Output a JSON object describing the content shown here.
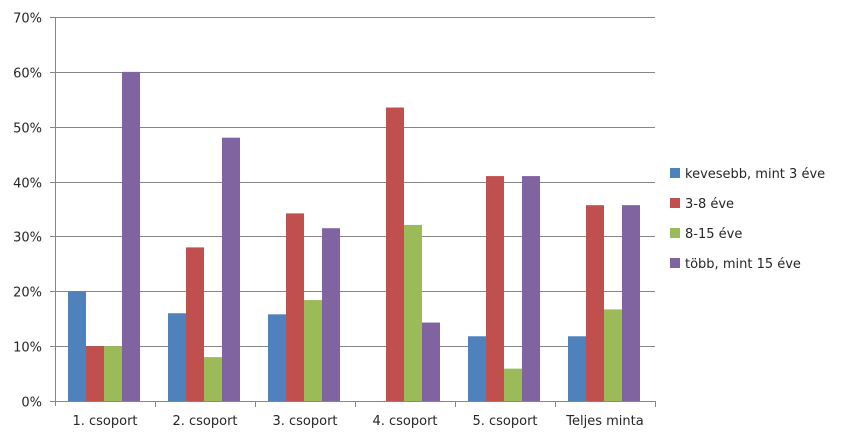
{
  "chart_data": {
    "type": "bar",
    "title": "",
    "xlabel": "",
    "ylabel": "",
    "ylim": [
      0,
      0.7
    ],
    "yticks": [
      0,
      0.1,
      0.2,
      0.3,
      0.4,
      0.5,
      0.6,
      0.7
    ],
    "ytick_labels": [
      "0%",
      "10%",
      "20%",
      "30%",
      "40%",
      "50%",
      "60%",
      "70%"
    ],
    "grid": true,
    "legend_position": "right",
    "categories": [
      "1. csoport",
      "2. csoport",
      "3. csoport",
      "4. csoport",
      "5. csoport",
      "Teljes minta"
    ],
    "series": [
      {
        "name": "kevesebb, mint 3 éve",
        "color": "#4F81BD",
        "values": [
          0.2,
          0.16,
          0.158,
          0.0,
          0.118,
          0.118
        ]
      },
      {
        "name": "3-8 éve",
        "color": "#C0504D",
        "values": [
          0.1,
          0.28,
          0.342,
          0.535,
          0.41,
          0.357
        ]
      },
      {
        "name": "8-15 éve",
        "color": "#9BBB59",
        "values": [
          0.1,
          0.08,
          0.184,
          0.321,
          0.059,
          0.167
        ]
      },
      {
        "name": "több, mint 15 éve",
        "color": "#8064A2",
        "values": [
          0.6,
          0.48,
          0.315,
          0.143,
          0.41,
          0.357
        ]
      }
    ]
  }
}
